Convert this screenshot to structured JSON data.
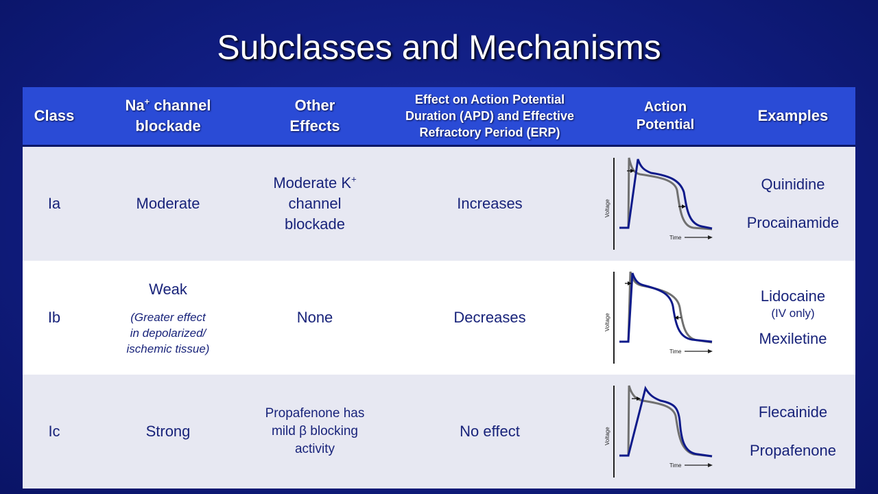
{
  "title": "Subclasses and Mechanisms",
  "headers": {
    "class": "Class",
    "na_pre": "Na",
    "na_sup": "+",
    "na_post": " channel",
    "na_line2": "blockade",
    "other_line1": "Other",
    "other_line2": "Effects",
    "effect_line1": "Effect on Action Potential",
    "effect_line2": "Duration (APD) and Effective",
    "effect_line3": "Refractory Period (ERP)",
    "ap_line1": "Action",
    "ap_line2": "Potential",
    "examples": "Examples"
  },
  "rows": [
    {
      "class": "Ia",
      "na_blockade": "Moderate",
      "other_line1_pre": "Moderate K",
      "other_line1_sup": "+",
      "other_line2": "channel",
      "other_line3": "blockade",
      "effect": "Increases",
      "example1": "Quinidine",
      "example2": "Procainamide"
    },
    {
      "class": "Ib",
      "na_blockade": "Weak",
      "na_note_line1": "(Greater effect",
      "na_note_line2": "in depolarized/",
      "na_note_line3": "ischemic tissue)",
      "other": "None",
      "effect": "Decreases",
      "example1": "Lidocaine",
      "example1_note": "(IV only)",
      "example2": "Mexiletine"
    },
    {
      "class": "Ic",
      "na_blockade": "Strong",
      "other_line1": "Propafenone has",
      "other_line2": "mild β blocking",
      "other_line3": "activity",
      "effect": "No effect",
      "example1": "Flecainide",
      "example2": "Propafenone"
    }
  ],
  "plot_labels": {
    "voltage": "Voltage",
    "time": "Time"
  },
  "colors": {
    "normal_curve": "#707070",
    "drug_curve": "#0e1a8a"
  }
}
